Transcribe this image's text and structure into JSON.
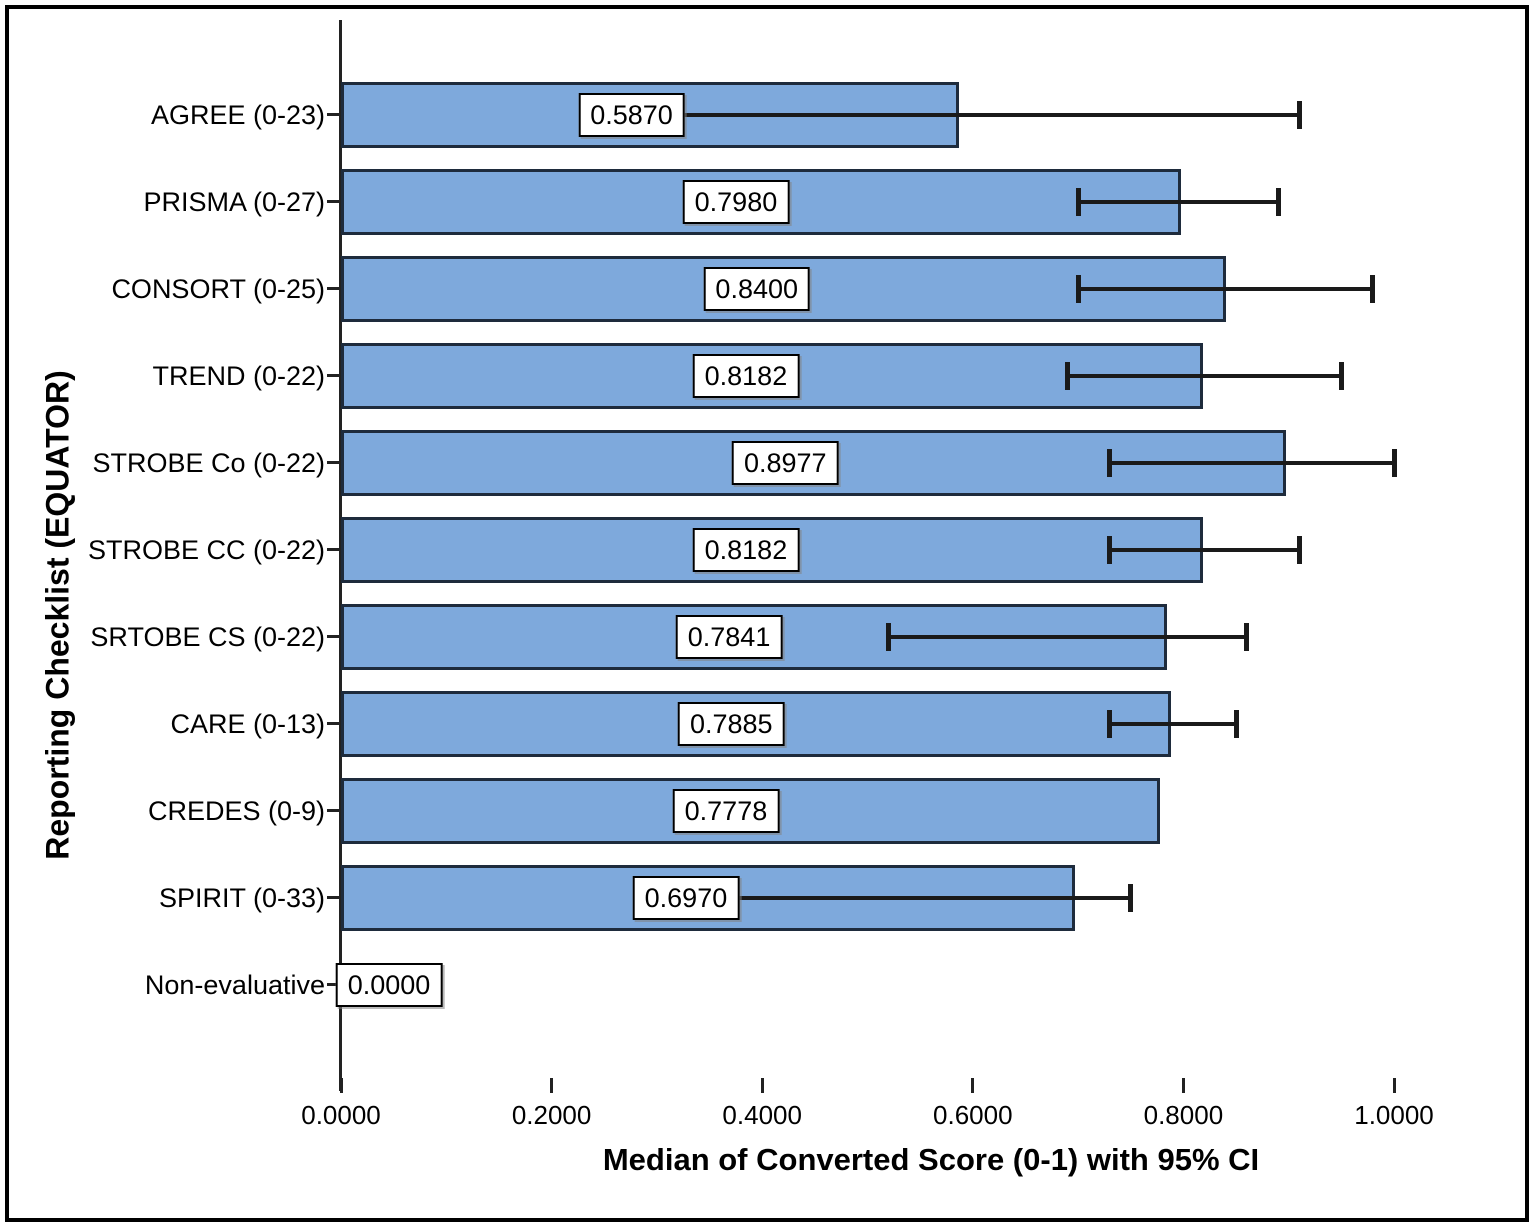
{
  "figure": {
    "background": "#FFFFFF",
    "frame_color": "#000000"
  },
  "chart_data": {
    "type": "bar",
    "orientation": "horizontal",
    "title": "",
    "xlabel": "Median of Converted Score (0-1) with 95% CI",
    "ylabel": "Reporting Checklist (EQUATOR)",
    "xlim": [
      0,
      1.0
    ],
    "x_ticks": [
      0,
      0.2,
      0.4,
      0.6,
      0.8,
      1.0
    ],
    "x_tick_labels": [
      "0.0000",
      "0.2000",
      "0.4000",
      "0.6000",
      "0.8000",
      "1.0000"
    ],
    "grid": false,
    "error_bars": "95% CI",
    "legend": null,
    "bars": [
      {
        "label": "AGREE (0-23)",
        "value": 0.587,
        "value_label": "0.5870",
        "ci_low": 0.3,
        "ci_high": 0.91
      },
      {
        "label": "PRISMA (0-27)",
        "value": 0.798,
        "value_label": "0.7980",
        "ci_low": 0.7,
        "ci_high": 0.89
      },
      {
        "label": "CONSORT (0-25)",
        "value": 0.84,
        "value_label": "0.8400",
        "ci_low": 0.7,
        "ci_high": 0.98
      },
      {
        "label": "TREND (0-22)",
        "value": 0.8182,
        "value_label": "0.8182",
        "ci_low": 0.69,
        "ci_high": 0.95
      },
      {
        "label": "STROBE Co (0-22)",
        "value": 0.8977,
        "value_label": "0.8977",
        "ci_low": 0.73,
        "ci_high": 1.0
      },
      {
        "label": "STROBE CC (0-22)",
        "value": 0.8182,
        "value_label": "0.8182",
        "ci_low": 0.73,
        "ci_high": 0.91
      },
      {
        "label": "SRTOBE CS (0-22)",
        "value": 0.7841,
        "value_label": "0.7841",
        "ci_low": 0.52,
        "ci_high": 0.86
      },
      {
        "label": "CARE (0-13)",
        "value": 0.7885,
        "value_label": "0.7885",
        "ci_low": 0.73,
        "ci_high": 0.85
      },
      {
        "label": "CREDES (0-9)",
        "value": 0.7778,
        "value_label": "0.7778",
        "ci_low": null,
        "ci_high": null
      },
      {
        "label": "SPIRIT (0-33)",
        "value": 0.697,
        "value_label": "0.6970",
        "ci_low": 0.37,
        "ci_high": 0.75
      },
      {
        "label": "Non-evaluative",
        "value": 0.0,
        "value_label": "0.0000",
        "ci_low": null,
        "ci_high": null
      }
    ],
    "colors": {
      "bar_fill": "#7EA9DC",
      "bar_border": "#1E2B3C",
      "error_bar": "#1A1A1A",
      "axis": "#222222",
      "text": "#000000",
      "label_box_bg": "#FFFFFF",
      "label_box_border": "#000000"
    }
  }
}
